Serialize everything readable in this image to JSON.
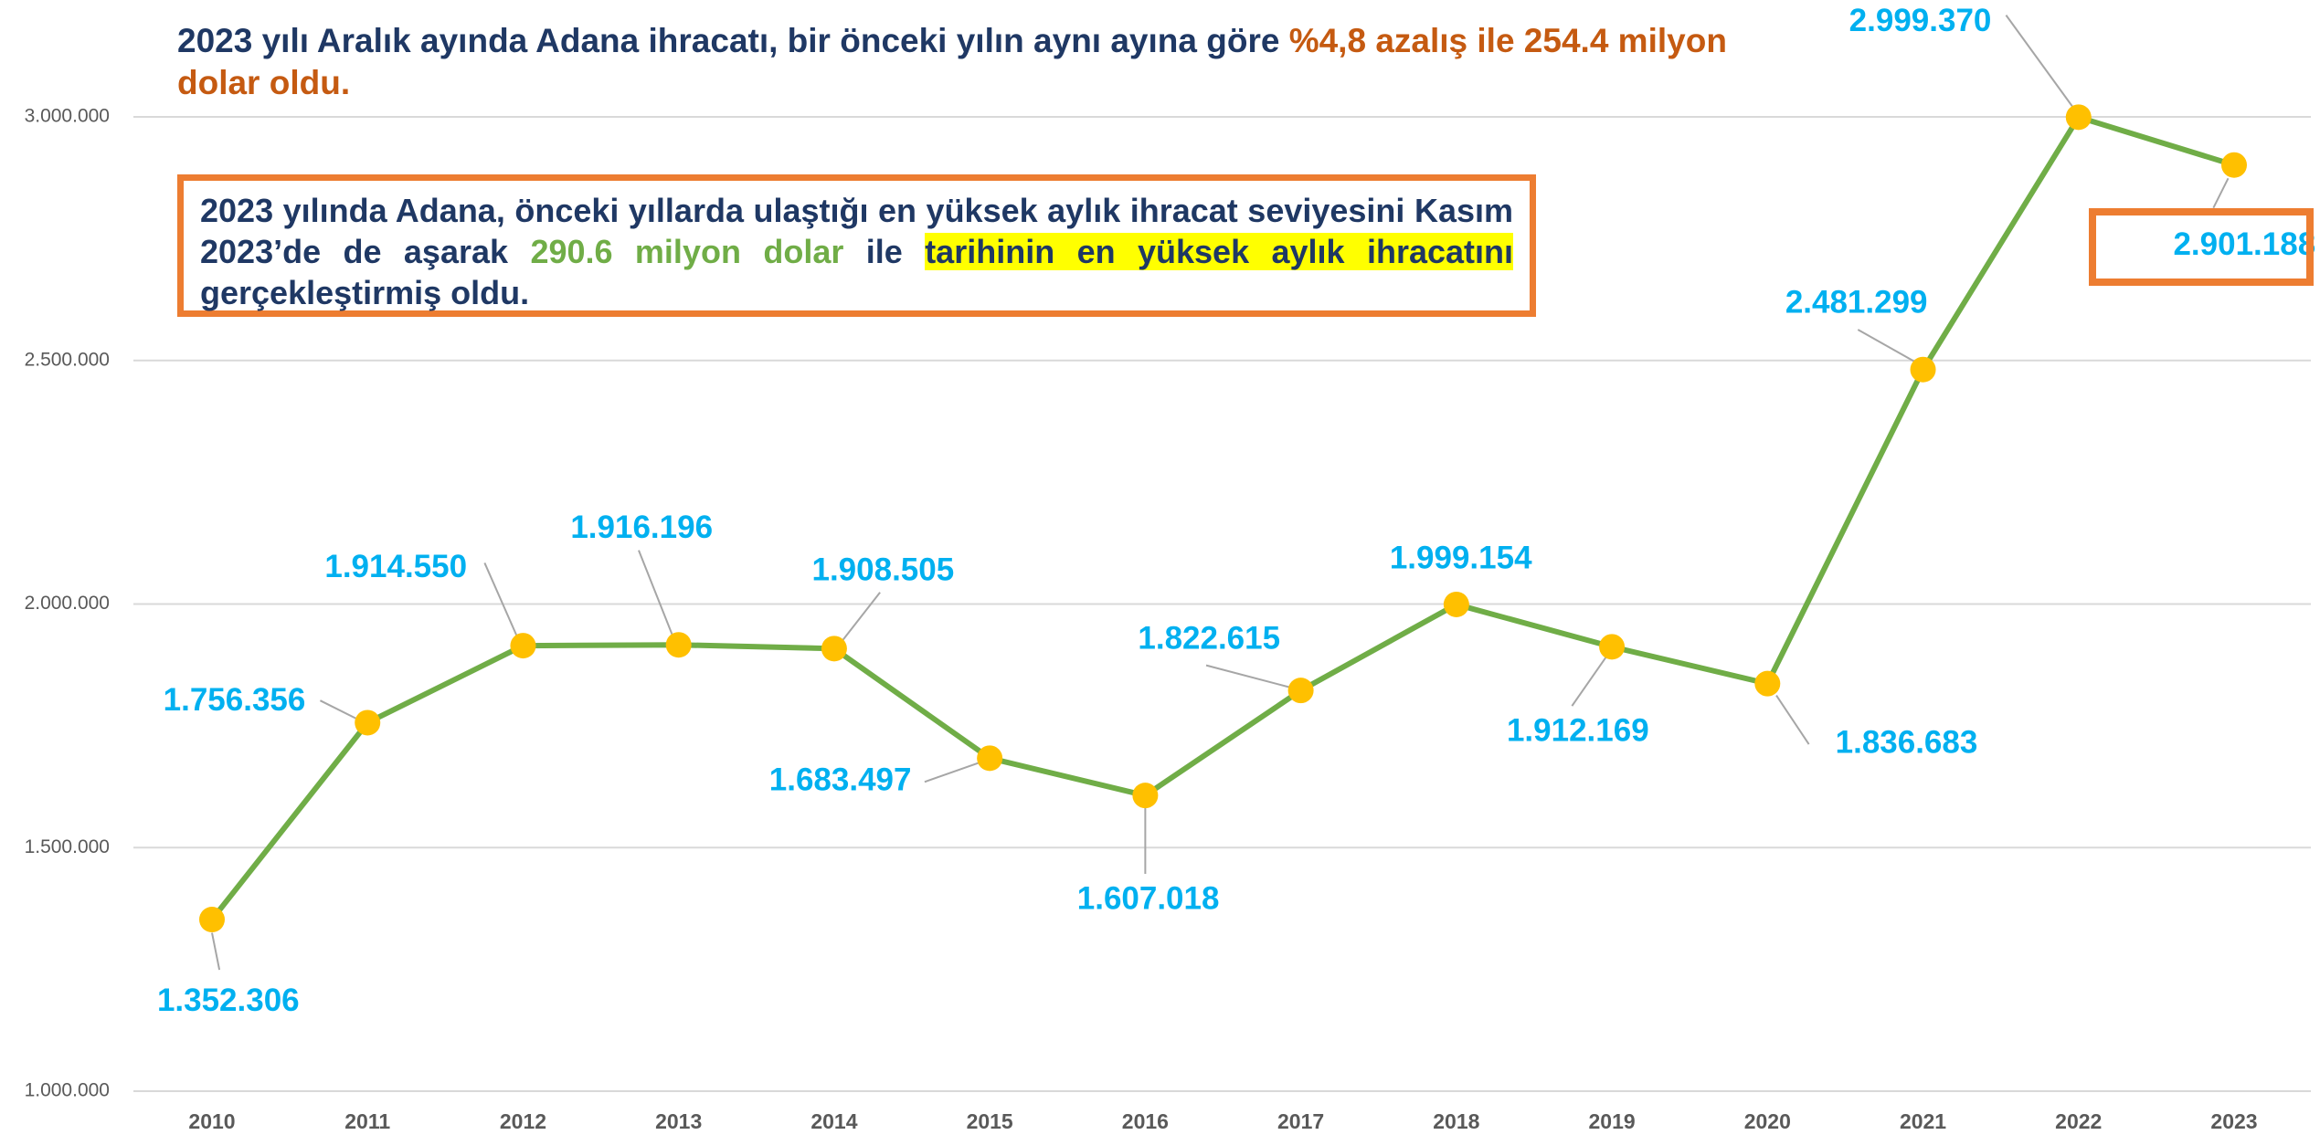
{
  "chart_data": {
    "type": "line",
    "title_parts": [
      "2023 yılı Aralık ayında Adana ihracatı, bir önceki yılın aynı ayına göre ",
      "%4,8 azalış ile 254.4 milyon dolar oldu."
    ],
    "annotation_parts": [
      "2023 yılında Adana, önceki yıllarda ulaştığı en yüksek aylık ihracat seviyesini Kasım 2023’de de aşarak ",
      "290.6 milyon dolar",
      " ile ",
      "tarihinin en yüksek aylık ihracatını",
      " gerçekleştirmiş oldu."
    ],
    "categories": [
      "2010",
      "2011",
      "2012",
      "2013",
      "2014",
      "2015",
      "2016",
      "2017",
      "2018",
      "2019",
      "2020",
      "2021",
      "2022",
      "2023"
    ],
    "values": [
      1352306,
      1756356,
      1914550,
      1916196,
      1908505,
      1683497,
      1607018,
      1822615,
      1999154,
      1912169,
      1836683,
      2481299,
      2999370,
      2901188
    ],
    "value_labels": [
      "1.352.306",
      "1.756.356",
      "1.914.550",
      "1.916.196",
      "1.908.505",
      "1.683.497",
      "1.607.018",
      "1.822.615",
      "1.999.154",
      "1.912.169",
      "1.836.683",
      "2.481.299",
      "2.999.370",
      "2.901.188"
    ],
    "color": "#70ad47",
    "marker_color": "#ffc000",
    "ylim": [
      1000000,
      3000000
    ],
    "yticks": [
      {
        "value": 1000000,
        "label": "1.000.000"
      },
      {
        "value": 1500000,
        "label": "1.500.000"
      },
      {
        "value": 2000000,
        "label": "2.000.000"
      },
      {
        "value": 2500000,
        "label": "2.500.000"
      },
      {
        "value": 3000000,
        "label": "3.000.000"
      }
    ],
    "grid": true
  }
}
